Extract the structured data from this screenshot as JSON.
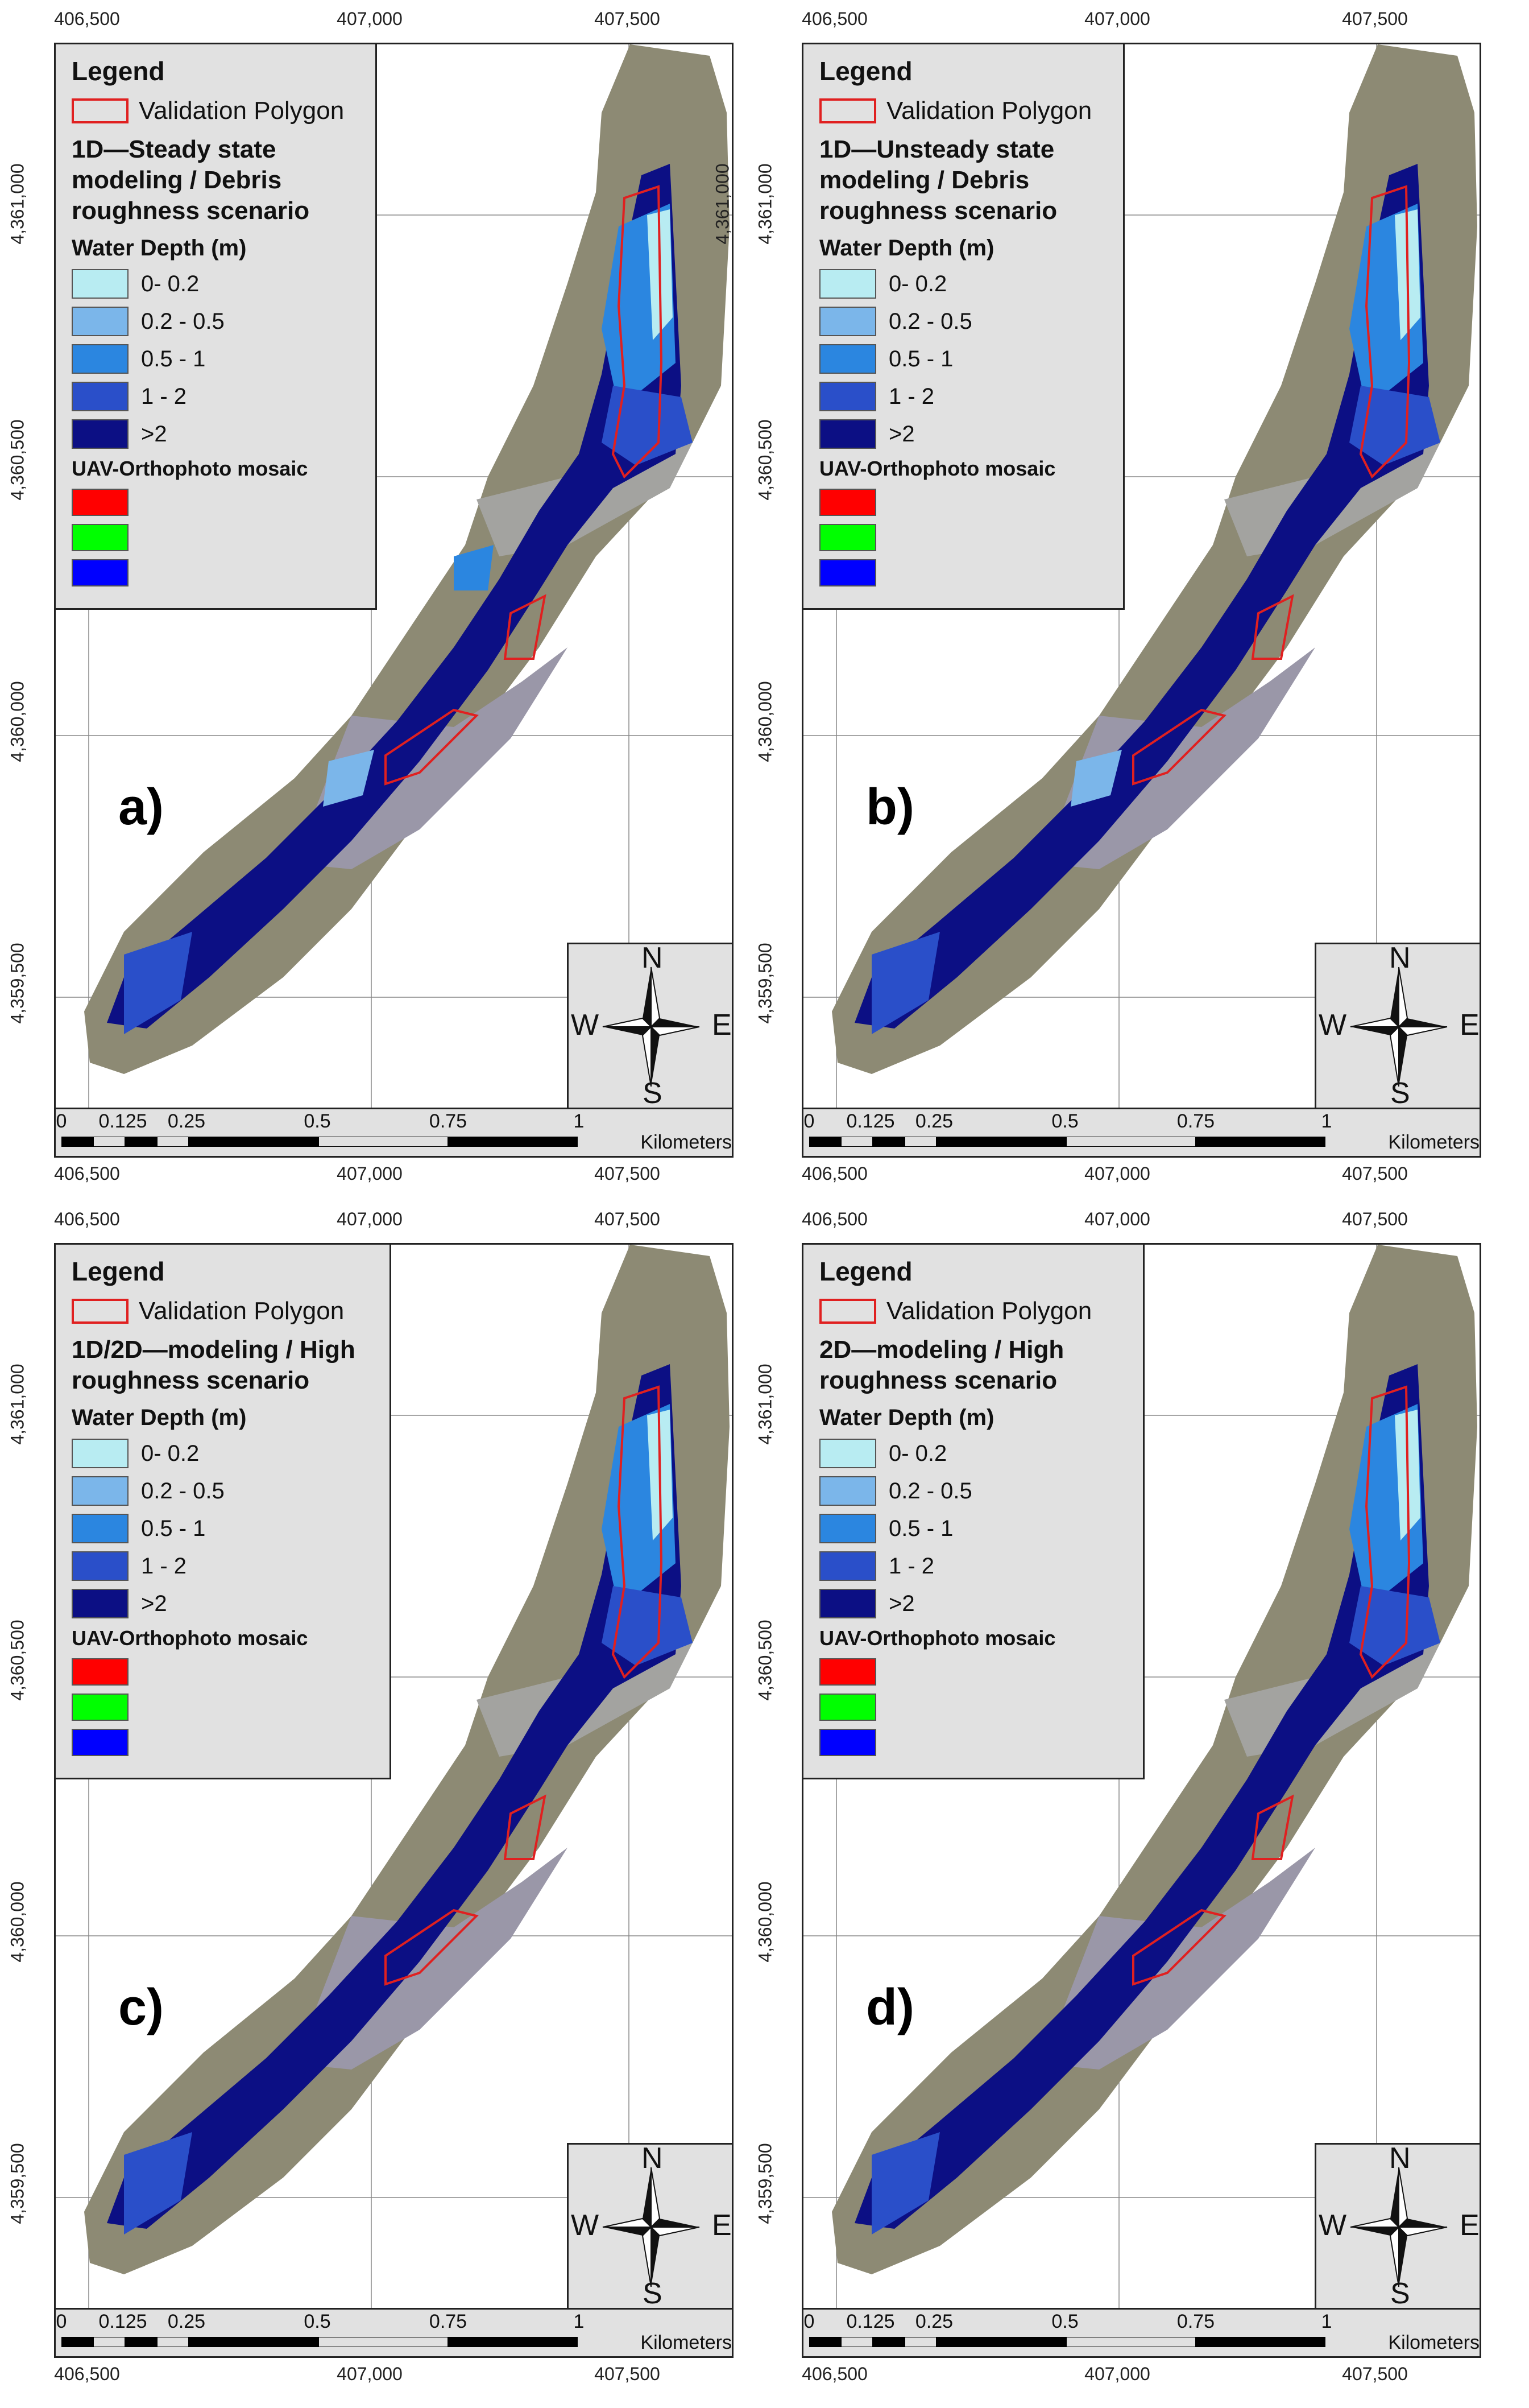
{
  "axes": {
    "x_ticks": [
      "406,500",
      "407,000",
      "407,500"
    ],
    "y_ticks": [
      "4,361,000",
      "4,360,500",
      "4,360,000",
      "4,359,500"
    ]
  },
  "legend_common": {
    "title": "Legend",
    "validation_label": "Validation Polygon",
    "water_depth_title": "Water Depth (m)",
    "classes": [
      {
        "label": "0- 0.2",
        "color": "#b8ecf2"
      },
      {
        "label": "0.2 - 0.5",
        "color": "#7bb6ea"
      },
      {
        "label": "0.5 - 1",
        "color": "#2b86e0"
      },
      {
        "label": "1 - 2",
        "color": "#2a4fc9"
      },
      {
        "label": ">2",
        "color": "#0c0f84"
      }
    ],
    "uav_title": "UAV-Orthophoto mosaic",
    "bands": [
      "#ff0000",
      "#00ff00",
      "#0000ff"
    ]
  },
  "panels": [
    {
      "letter": "a)",
      "scenario": "1D—Steady state modeling / Debris roughness scenario"
    },
    {
      "letter": "b)",
      "scenario": "1D—Unsteady state modeling / Debris roughness scenario"
    },
    {
      "letter": "c)",
      "scenario": "1D/2D—modeling / High roughness scenario"
    },
    {
      "letter": "d)",
      "scenario": "2D—modeling / High roughness scenario"
    }
  ],
  "north_arrow": {
    "n": "N",
    "s": "S",
    "e": "E",
    "w": "W"
  },
  "scale_bar": {
    "labels": [
      "0",
      "0.125",
      "0.25",
      "0.5",
      "0.75",
      "1"
    ],
    "unit": "Kilometers"
  },
  "colors": {
    "polygon_outline": "#e02020",
    "legend_bg": "#e1e1e1"
  }
}
